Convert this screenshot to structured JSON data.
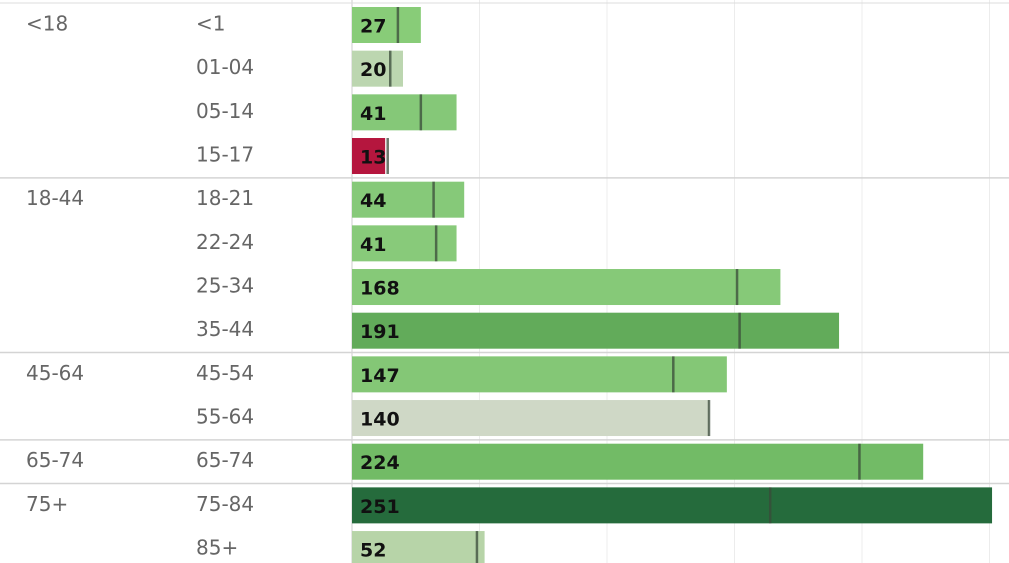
{
  "chart_data": {
    "type": "bar",
    "categories": [
      "<1",
      "01-04",
      "05-14",
      "15-17",
      "18-21",
      "22-24",
      "25-34",
      "35-44",
      "45-54",
      "55-64",
      "65-74",
      "75-84",
      "85+"
    ],
    "group_labels": [
      "<18",
      null,
      null,
      null,
      "18-44",
      null,
      null,
      null,
      "45-64",
      null,
      "65-74",
      "75+",
      null
    ],
    "values": [
      27,
      20,
      41,
      13,
      44,
      41,
      168,
      191,
      147,
      140,
      224,
      251,
      52
    ],
    "colors": [
      "#88cc78",
      "#bcd6b0",
      "#85c878",
      "#b5163e",
      "#86c979",
      "#88ca7a",
      "#86c978",
      "#62ab5a",
      "#84c776",
      "#cfd8c6",
      "#72bb66",
      "#256b3c",
      "#b7d4a8"
    ],
    "reference_values": [
      18,
      15,
      27,
      14,
      32,
      33,
      151,
      152,
      126,
      140,
      199,
      164,
      49
    ],
    "xlim": [
      0,
      250
    ],
    "xticks": [
      50,
      100,
      150,
      200,
      250
    ],
    "grid": true
  }
}
